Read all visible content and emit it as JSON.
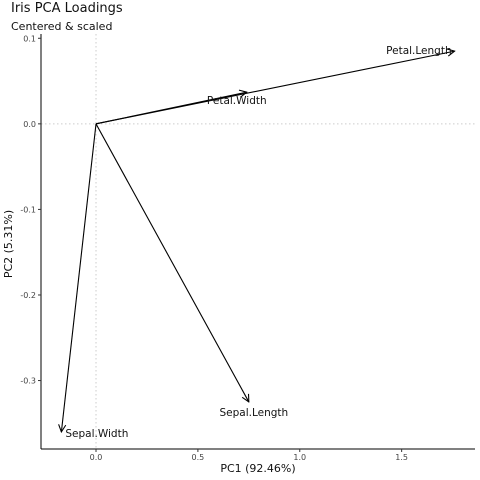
{
  "chart_data": {
    "type": "scatter",
    "title": "Iris PCA Loadings",
    "subtitle": "Centered & scaled",
    "xlabel": "PC1 (92.46%)",
    "ylabel": "PC2 (5.31%)",
    "xlim": [
      -0.27,
      1.86
    ],
    "ylim": [
      -0.38,
      0.105
    ],
    "xticks": [
      0.0,
      0.5,
      1.0,
      1.5
    ],
    "xtick_labels": [
      "0.0",
      "0.5",
      "1.0",
      "1.5"
    ],
    "yticks": [
      0.1,
      0.0,
      -0.1,
      -0.2,
      -0.3
    ],
    "ytick_labels": [
      "0.1",
      "0.0",
      "-0.1",
      "-0.2",
      "-0.3"
    ],
    "reference_lines": {
      "x": 0,
      "y": 0,
      "style": "dotted"
    },
    "vectors": [
      {
        "name": "Sepal.Length",
        "x": 0.75,
        "y": -0.325
      },
      {
        "name": "Sepal.Width",
        "x": -0.17,
        "y": -0.36
      },
      {
        "name": "Petal.Length",
        "x": 1.76,
        "y": 0.085
      },
      {
        "name": "Petal.Width",
        "x": 0.74,
        "y": 0.037
      }
    ]
  }
}
